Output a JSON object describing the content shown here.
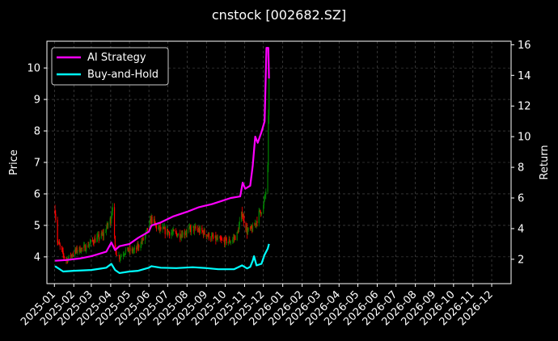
{
  "chart_data": {
    "type": "line",
    "title": "cnstock [002682.SZ]",
    "ylabel": "Price",
    "y2label": "Return",
    "ylim": [
      3.15,
      10.85
    ],
    "y2lim": [
      0.41,
      16.23
    ],
    "yticks": [
      4,
      5,
      6,
      7,
      8,
      9,
      10
    ],
    "y2ticks": [
      2,
      4,
      6,
      8,
      10,
      12,
      14,
      16
    ],
    "xlim": [
      "2024-12-20",
      "2027-01-01"
    ],
    "xticks": [
      "2025-01",
      "2025-02",
      "2025-03",
      "2025-04",
      "2025-05",
      "2025-06",
      "2025-07",
      "2025-08",
      "2025-09",
      "2025-10",
      "2025-11",
      "2025-12",
      "2026-01",
      "2026-02",
      "2026-03",
      "2026-04",
      "2026-05",
      "2026-06",
      "2026-07",
      "2026-08",
      "2026-09",
      "2026-10",
      "2026-11",
      "2026-12"
    ],
    "grid": true,
    "legend_position": "top-left",
    "colors": {
      "up": "#008000",
      "down": "#ff0000",
      "ai": "#ff00ff",
      "bh": "#00ffff",
      "grid": "#555555"
    },
    "price_anchors": [
      [
        "2025-01-02",
        5.5
      ],
      [
        "2025-01-06",
        4.5
      ],
      [
        "2025-01-14",
        4.1
      ],
      [
        "2025-01-20",
        3.9
      ],
      [
        "2025-02-05",
        4.2
      ],
      [
        "2025-02-20",
        4.3
      ],
      [
        "2025-03-03",
        4.5
      ],
      [
        "2025-03-20",
        4.7
      ],
      [
        "2025-04-01",
        5.2
      ],
      [
        "2025-04-04",
        5.7
      ],
      [
        "2025-04-08",
        4.2
      ],
      [
        "2025-04-15",
        4.0
      ],
      [
        "2025-04-25",
        4.2
      ],
      [
        "2025-05-10",
        4.2
      ],
      [
        "2025-05-25",
        4.6
      ],
      [
        "2025-06-05",
        5.2
      ],
      [
        "2025-06-15",
        4.9
      ],
      [
        "2025-07-01",
        4.8
      ],
      [
        "2025-07-20",
        4.7
      ],
      [
        "2025-08-10",
        4.9
      ],
      [
        "2025-08-25",
        4.8
      ],
      [
        "2025-09-10",
        4.6
      ],
      [
        "2025-09-25",
        4.5
      ],
      [
        "2025-10-10",
        4.5
      ],
      [
        "2025-10-20",
        4.7
      ],
      [
        "2025-10-28",
        5.4
      ],
      [
        "2025-11-05",
        4.8
      ],
      [
        "2025-11-15",
        4.9
      ],
      [
        "2025-11-25",
        5.4
      ],
      [
        "2025-12-01",
        5.6
      ],
      [
        "2025-12-05",
        6.1
      ],
      [
        "2025-12-08",
        6.8
      ],
      [
        "2025-12-10",
        9.8
      ]
    ],
    "series": [
      {
        "name": "AI Strategy",
        "points": [
          [
            "2025-01-02",
            1.9
          ],
          [
            "2025-01-20",
            1.95
          ],
          [
            "2025-02-10",
            2.05
          ],
          [
            "2025-03-01",
            2.2
          ],
          [
            "2025-03-25",
            2.5
          ],
          [
            "2025-04-02",
            3.1
          ],
          [
            "2025-04-08",
            2.6
          ],
          [
            "2025-04-15",
            2.85
          ],
          [
            "2025-05-01",
            3.0
          ],
          [
            "2025-05-15",
            3.4
          ],
          [
            "2025-06-01",
            3.8
          ],
          [
            "2025-06-05",
            4.2
          ],
          [
            "2025-06-20",
            4.4
          ],
          [
            "2025-07-10",
            4.8
          ],
          [
            "2025-08-01",
            5.1
          ],
          [
            "2025-08-20",
            5.4
          ],
          [
            "2025-09-10",
            5.6
          ],
          [
            "2025-09-25",
            5.8
          ],
          [
            "2025-10-10",
            6.0
          ],
          [
            "2025-10-25",
            6.1
          ],
          [
            "2025-10-29",
            7.0
          ],
          [
            "2025-11-02",
            6.6
          ],
          [
            "2025-11-10",
            6.8
          ],
          [
            "2025-11-14",
            8.1
          ],
          [
            "2025-11-18",
            10.0
          ],
          [
            "2025-11-22",
            9.6
          ],
          [
            "2025-11-28",
            10.3
          ],
          [
            "2025-12-03",
            11.0
          ],
          [
            "2025-12-06",
            15.8
          ],
          [
            "2025-12-09",
            15.8
          ],
          [
            "2025-12-10",
            13.8
          ]
        ]
      },
      {
        "name": "Buy-and-Hold",
        "points": [
          [
            "2025-01-02",
            1.55
          ],
          [
            "2025-01-15",
            1.2
          ],
          [
            "2025-02-01",
            1.25
          ],
          [
            "2025-03-01",
            1.3
          ],
          [
            "2025-03-25",
            1.45
          ],
          [
            "2025-04-02",
            1.7
          ],
          [
            "2025-04-08",
            1.3
          ],
          [
            "2025-04-15",
            1.1
          ],
          [
            "2025-05-01",
            1.2
          ],
          [
            "2025-05-15",
            1.25
          ],
          [
            "2025-06-01",
            1.45
          ],
          [
            "2025-06-05",
            1.55
          ],
          [
            "2025-06-20",
            1.45
          ],
          [
            "2025-07-15",
            1.42
          ],
          [
            "2025-08-10",
            1.48
          ],
          [
            "2025-09-01",
            1.42
          ],
          [
            "2025-09-20",
            1.35
          ],
          [
            "2025-10-15",
            1.35
          ],
          [
            "2025-10-28",
            1.6
          ],
          [
            "2025-11-05",
            1.4
          ],
          [
            "2025-11-10",
            1.5
          ],
          [
            "2025-11-14",
            1.9
          ],
          [
            "2025-11-16",
            2.2
          ],
          [
            "2025-11-20",
            1.6
          ],
          [
            "2025-11-28",
            1.7
          ],
          [
            "2025-12-03",
            2.3
          ],
          [
            "2025-12-08",
            2.7
          ],
          [
            "2025-12-10",
            3.0
          ]
        ]
      }
    ]
  }
}
